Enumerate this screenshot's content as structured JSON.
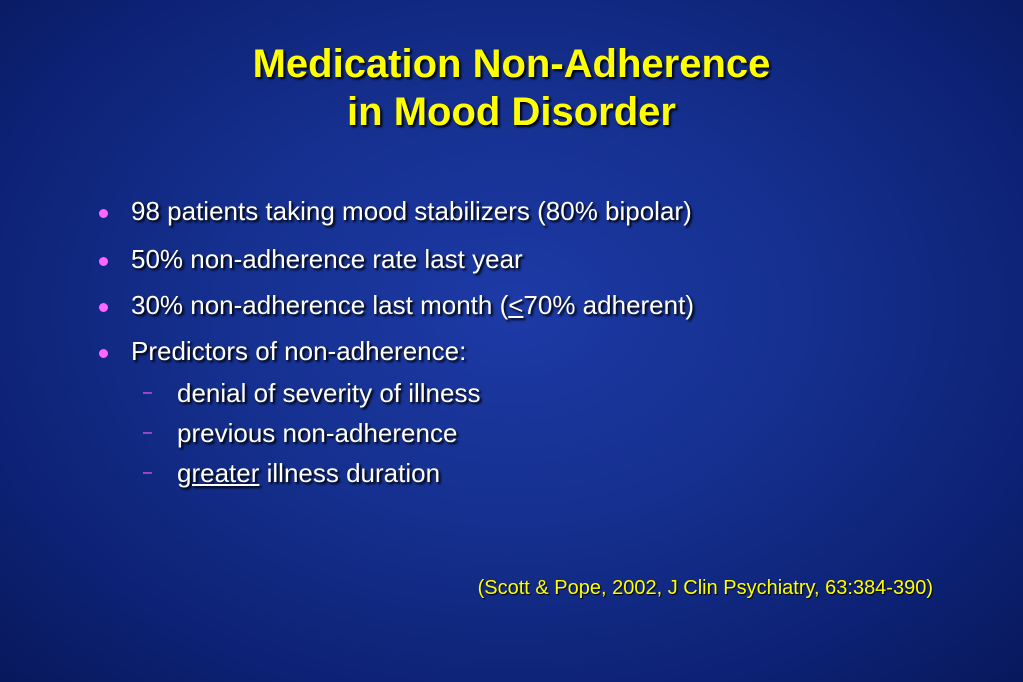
{
  "slide": {
    "title_line1": "Medication Non-Adherence",
    "title_line2": "in Mood Disorder",
    "bullets": [
      {
        "text": "98 patients taking mood stabilizers (80% bipolar)"
      },
      {
        "text": "50% non-adherence rate last year"
      },
      {
        "pre": "30% non-adherence last month (",
        "underlined": "<",
        "post": "70% adherent)"
      },
      {
        "text": "Predictors of non-adherence:"
      }
    ],
    "sub_bullets": [
      {
        "text": "denial of severity of illness"
      },
      {
        "text": "previous non-adherence"
      },
      {
        "underlined": "greater",
        "post": " illness duration"
      }
    ],
    "sub_marker": "–",
    "citation": "(Scott & Pope, 2002, J Clin Psychiatry, 63:384-390)",
    "colors": {
      "background": "#15308f",
      "title": "#ffff00",
      "text": "#ffffff",
      "bullet": "#ff66ff",
      "citation": "#ffff00"
    }
  }
}
